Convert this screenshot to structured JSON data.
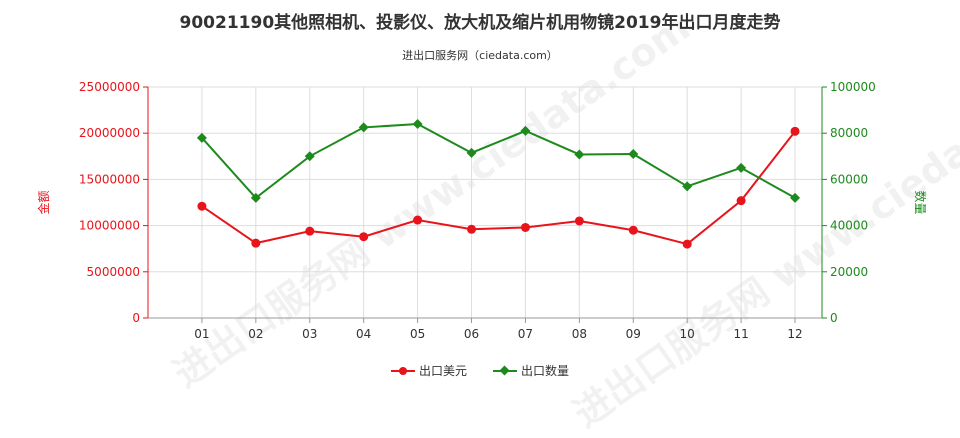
{
  "chart_data": {
    "type": "line",
    "title": "90021190其他照相机、投影仪、放大机及缩片机用物镜2019年出口月度走势",
    "subtitle": "进出口服务网（ciedata.com）",
    "watermark": "进出口服务网 www.ciedata.com",
    "categories": [
      "01",
      "02",
      "03",
      "04",
      "05",
      "06",
      "07",
      "08",
      "09",
      "10",
      "11",
      "12"
    ],
    "y_left": {
      "label": "金额",
      "ylim": [
        0,
        25000000
      ],
      "ticks": [
        "0",
        "5000000",
        "10000000",
        "15000000",
        "20000000",
        "25000000"
      ]
    },
    "y_right": {
      "label": "数量",
      "ylim": [
        0,
        100000
      ],
      "ticks": [
        "0",
        "20000",
        "40000",
        "60000",
        "80000",
        "100000"
      ]
    },
    "series": [
      {
        "name": "出口美元",
        "axis": "left",
        "color": "#e8141b",
        "marker": "circle",
        "values": [
          12100000,
          8100000,
          9400000,
          8800000,
          10600000,
          9600000,
          9800000,
          10500000,
          9500000,
          8000000,
          12700000,
          20200000
        ]
      },
      {
        "name": "出口数量",
        "axis": "right",
        "color": "#1e8a1e",
        "marker": "diamond",
        "values": [
          78000,
          52000,
          70000,
          82500,
          84000,
          71500,
          81000,
          70800,
          71000,
          57000,
          65000,
          52000
        ]
      }
    ],
    "grid": true,
    "legend_position": "bottom"
  }
}
